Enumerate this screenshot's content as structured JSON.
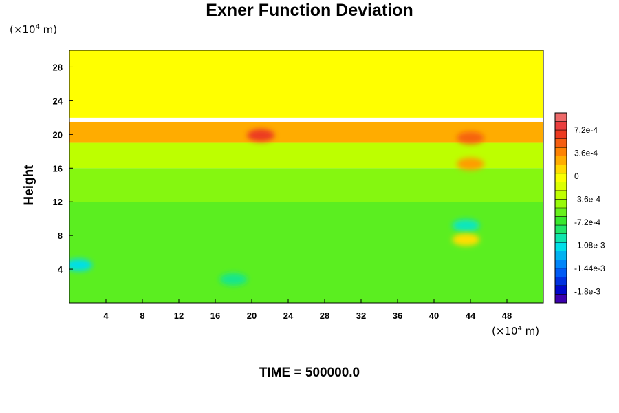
{
  "chart_data": {
    "type": "heatmap",
    "title": "Exner Function Deviation",
    "ylabel": "Height",
    "y_unit": {
      "prefix": "(×10",
      "exp": "4",
      "suffix": " m)"
    },
    "x_unit": {
      "prefix": "(×10",
      "exp": "4",
      "suffix": " m)"
    },
    "xlim": [
      0,
      52
    ],
    "ylim": [
      0,
      30
    ],
    "x_ticks": [
      4,
      8,
      12,
      16,
      20,
      24,
      28,
      32,
      36,
      40,
      44,
      48
    ],
    "y_ticks": [
      4,
      8,
      12,
      16,
      20,
      24,
      28
    ],
    "colorbar": {
      "range": [
        -0.00198,
        0.00099
      ],
      "tick_values": [
        0.00072,
        0.00036,
        0,
        -0.00036,
        -0.00072,
        -0.00108,
        -0.00144,
        -0.0018
      ],
      "tick_labels": [
        "7.2e-4",
        "3.6e-4",
        "0",
        "-3.6e-4",
        "-7.2e-4",
        "-1.08e-3",
        "-1.44e-3",
        "-1.8e-3"
      ]
    },
    "bands": [
      {
        "y": [
          22,
          30
        ],
        "value": 0
      },
      {
        "y": [
          19,
          21.5
        ],
        "value": 0.00025
      },
      {
        "y": [
          16,
          19
        ],
        "value": -0.0003
      },
      {
        "y": [
          12,
          16
        ],
        "value": -0.00048
      },
      {
        "y": [
          0,
          12
        ],
        "value": -0.0006
      }
    ],
    "features": [
      {
        "x": 21,
        "y": 19.9,
        "value": 0.00065
      },
      {
        "x": 44,
        "y": 19.6,
        "value": 0.0005
      },
      {
        "x": 44,
        "y": 16.5,
        "value": 0.0003
      },
      {
        "x": 1,
        "y": 4.5,
        "value": -0.0011
      },
      {
        "x": 18,
        "y": 2.8,
        "value": -0.0009
      },
      {
        "x": 43.5,
        "y": 9.2,
        "value": -0.001
      },
      {
        "x": 43.5,
        "y": 7.5,
        "value": 0.0001
      }
    ],
    "grid": false,
    "legend": "right"
  },
  "footer": {
    "time_label": "TIME = 500000.0"
  }
}
